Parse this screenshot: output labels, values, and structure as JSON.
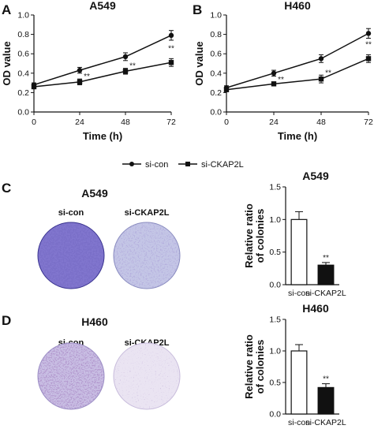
{
  "legend": {
    "items": [
      {
        "label": "si-con",
        "marker": "circle"
      },
      {
        "label": "si-CKAP2L",
        "marker": "square"
      }
    ]
  },
  "panels": {
    "A": {
      "letter": "A"
    },
    "B": {
      "letter": "B"
    },
    "C": {
      "letter": "C",
      "image_title": "A549",
      "dish_labels": [
        "si-con",
        "si-CKAP2L"
      ]
    },
    "D": {
      "letter": "D",
      "image_title": "H460",
      "dish_labels": [
        "si-con",
        "si-CKAP2L"
      ]
    }
  },
  "colors": {
    "ink": "#111111",
    "dish_dense_stain": "#5a4fb8",
    "dish_light_stain": "#b8b8e0",
    "dish_d_con_stain": "#9a86c8",
    "dish_d_ckap_stain": "#cbbce0"
  },
  "chart_data": [
    {
      "id": "A",
      "type": "line",
      "title": "A549",
      "xlabel": "Time (h)",
      "ylabel": "OD value",
      "x": [
        0,
        24,
        48,
        72
      ],
      "xticks": [
        "0",
        "24",
        "48",
        "72"
      ],
      "ylim": [
        0.0,
        1.0
      ],
      "yticks": [
        "0.0",
        "0.2",
        "0.4",
        "0.6",
        "0.8",
        "1.0"
      ],
      "series": [
        {
          "name": "si-con",
          "marker": "circle",
          "values": [
            0.28,
            0.43,
            0.57,
            0.79
          ],
          "errors": [
            0.02,
            0.03,
            0.04,
            0.05
          ]
        },
        {
          "name": "si-CKAP2L",
          "marker": "square",
          "values": [
            0.26,
            0.31,
            0.42,
            0.51
          ],
          "errors": [
            0.02,
            0.03,
            0.03,
            0.04
          ]
        }
      ],
      "annotations": [
        {
          "x": 24,
          "text": "**"
        },
        {
          "x": 48,
          "text": "**"
        },
        {
          "x": 72,
          "text": "**"
        }
      ]
    },
    {
      "id": "B",
      "type": "line",
      "title": "H460",
      "xlabel": "Time (h)",
      "ylabel": "OD value",
      "x": [
        0,
        24,
        48,
        72
      ],
      "xticks": [
        "0",
        "24",
        "48",
        "72"
      ],
      "ylim": [
        0.0,
        1.0
      ],
      "yticks": [
        "0.0",
        "0.2",
        "0.4",
        "0.6",
        "0.8",
        "1.0"
      ],
      "series": [
        {
          "name": "si-con",
          "marker": "circle",
          "values": [
            0.25,
            0.4,
            0.55,
            0.81
          ],
          "errors": [
            0.02,
            0.03,
            0.04,
            0.05
          ]
        },
        {
          "name": "si-CKAP2L",
          "marker": "square",
          "values": [
            0.23,
            0.29,
            0.34,
            0.55
          ],
          "errors": [
            0.02,
            0.02,
            0.04,
            0.04
          ]
        }
      ],
      "annotations": [
        {
          "x": 24,
          "text": "**"
        },
        {
          "x": 48,
          "text": "**"
        },
        {
          "x": 72,
          "text": "**"
        }
      ]
    },
    {
      "id": "C",
      "type": "bar",
      "title": "A549",
      "ylabel": "Relative ratio of colonies",
      "ylabel_lines": [
        "Relative ratio",
        "of colonies"
      ],
      "categories": [
        "si-con",
        "si-CKAP2L"
      ],
      "values": [
        1.0,
        0.3
      ],
      "errors": [
        0.12,
        0.04
      ],
      "fills": [
        "#ffffff",
        "#111111"
      ],
      "ylim": [
        0.0,
        1.5
      ],
      "yticks": [
        "0.0",
        "0.5",
        "1.0",
        "1.5"
      ],
      "annotations": [
        {
          "category": "si-CKAP2L",
          "text": "**"
        }
      ]
    },
    {
      "id": "D",
      "type": "bar",
      "title": "H460",
      "ylabel": "Relative ratio of colonies",
      "ylabel_lines": [
        "Relative ratio",
        "of colonies"
      ],
      "categories": [
        "si-con",
        "si-CKAP2L"
      ],
      "values": [
        1.0,
        0.42
      ],
      "errors": [
        0.1,
        0.06
      ],
      "fills": [
        "#ffffff",
        "#111111"
      ],
      "ylim": [
        0.0,
        1.5
      ],
      "yticks": [
        "0.0",
        "0.5",
        "1.0",
        "1.5"
      ],
      "annotations": [
        {
          "category": "si-CKAP2L",
          "text": "**"
        }
      ]
    }
  ]
}
